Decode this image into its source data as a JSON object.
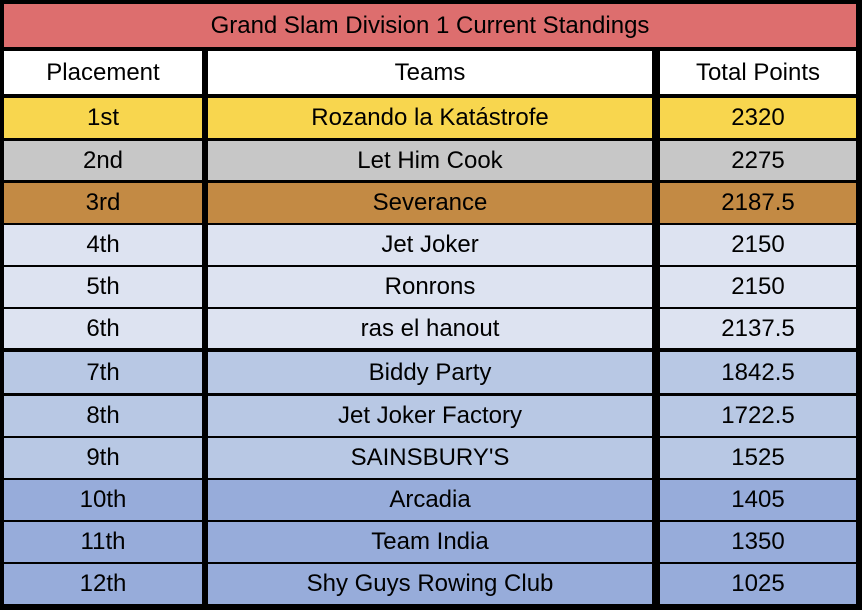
{
  "title": "Grand Slam Division 1 Current Standings",
  "headers": {
    "placement": "Placement",
    "teams": "Teams",
    "points": "Total Points"
  },
  "rows": [
    {
      "place": "1st",
      "team": "Rozando la Katástrofe",
      "points": "2320",
      "color": "#f8d64e"
    },
    {
      "place": "2nd",
      "team": "Let Him Cook",
      "points": "2275",
      "color": "#c7c7c7"
    },
    {
      "place": "3rd",
      "team": "Severance",
      "points": "2187.5",
      "color": "#c38a44"
    },
    {
      "place": "4th",
      "team": "Jet Joker",
      "points": "2150",
      "color": "#dde3f1"
    },
    {
      "place": "5th",
      "team": "Ronrons",
      "points": "2150",
      "color": "#dde3f1"
    },
    {
      "place": "6th",
      "team": "ras el hanout",
      "points": "2137.5",
      "color": "#dde3f1"
    },
    {
      "place": "7th",
      "team": "Biddy Party",
      "points": "1842.5",
      "color": "#b8c8e4"
    },
    {
      "place": "8th",
      "team": "Jet Joker Factory",
      "points": "1722.5",
      "color": "#b8c8e4"
    },
    {
      "place": "9th",
      "team": "SAINSBURY'S",
      "points": "1525",
      "color": "#b8c8e4"
    },
    {
      "place": "10th",
      "team": "Arcadia",
      "points": "1405",
      "color": "#97acda"
    },
    {
      "place": "11th",
      "team": "Team India",
      "points": "1350",
      "color": "#97acda"
    },
    {
      "place": "12th",
      "team": "Shy Guys Rowing Club",
      "points": "1025",
      "color": "#97acda"
    }
  ]
}
